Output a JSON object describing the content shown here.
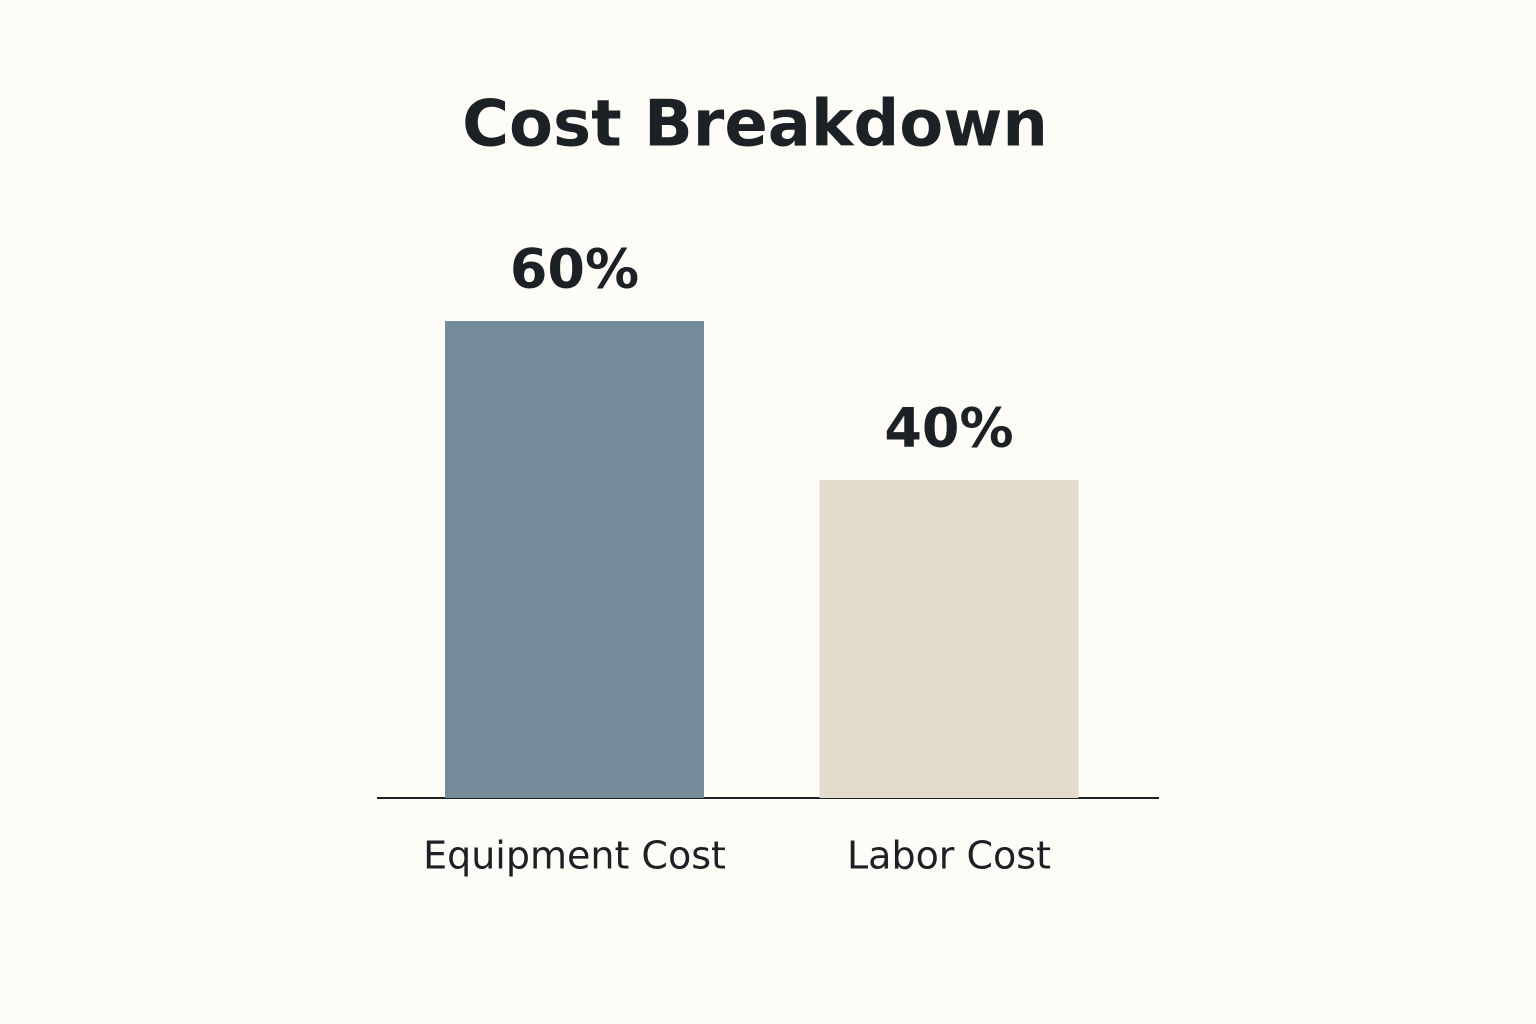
{
  "chart_data": {
    "type": "bar",
    "title": "Cost Breakdown",
    "categories": [
      "Equipment Cost",
      "Labor Cost"
    ],
    "values": [
      60,
      40
    ],
    "value_labels": [
      "60%",
      "40%"
    ],
    "colors": [
      "#748b99",
      "#e3dbcb"
    ]
  }
}
